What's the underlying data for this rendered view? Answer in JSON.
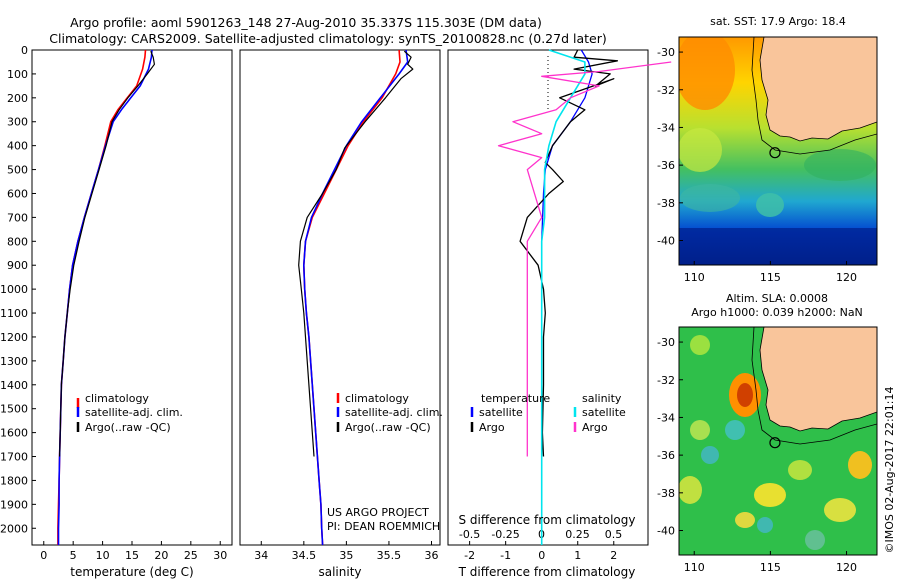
{
  "header": {
    "title_line1": "Argo profile: aoml 5901263_148 27-Aug-2010 35.337S 115.303E (DM data)",
    "title_line2": "Climatology: CARS2009. Satellite-adjusted climatology: synTS_20100828.nc (0.27d later)"
  },
  "colors": {
    "climatology": "#ff0000",
    "satellite": "#0000ff",
    "argo": "#000000",
    "sal_satellite": "#00e5ee",
    "sal_argo": "#ff33cc"
  },
  "chart_data": [
    {
      "type": "line",
      "id": "temperature",
      "xlabel": "temperature (deg C)",
      "xlim": [
        -2,
        32
      ],
      "xticks": [
        0,
        5,
        10,
        15,
        20,
        25,
        30
      ],
      "ylim": [
        2070,
        0
      ],
      "yticks": [
        0,
        100,
        200,
        300,
        400,
        500,
        600,
        700,
        800,
        900,
        1000,
        1100,
        1200,
        1300,
        1400,
        1500,
        1600,
        1700,
        1800,
        1900,
        2000
      ],
      "legend": [
        "climatology",
        "satellite-adj. clim.",
        "Argo(..raw -QC)"
      ],
      "series": [
        {
          "name": "climatology",
          "color_key": "climatology",
          "width": 1.6,
          "points": [
            [
              17.3,
              0
            ],
            [
              17.2,
              30
            ],
            [
              16.8,
              80
            ],
            [
              15.8,
              150
            ],
            [
              14.2,
              200
            ],
            [
              12.6,
              250
            ],
            [
              11.4,
              300
            ],
            [
              10.4,
              400
            ],
            [
              9.3,
              500
            ],
            [
              8.1,
              600
            ],
            [
              6.9,
              700
            ],
            [
              5.8,
              800
            ],
            [
              4.9,
              900
            ],
            [
              4.4,
              1000
            ],
            [
              4.0,
              1100
            ],
            [
              3.6,
              1200
            ],
            [
              3.3,
              1300
            ],
            [
              3.0,
              1400
            ],
            [
              2.9,
              1500
            ],
            [
              2.8,
              1600
            ],
            [
              2.7,
              1700
            ],
            [
              2.6,
              1800
            ],
            [
              2.5,
              1900
            ],
            [
              2.4,
              2000
            ],
            [
              2.4,
              2070
            ]
          ]
        },
        {
          "name": "satellite-adj. clim.",
          "color_key": "satellite",
          "width": 1.6,
          "points": [
            [
              18.4,
              0
            ],
            [
              18.3,
              30
            ],
            [
              17.8,
              80
            ],
            [
              16.4,
              150
            ],
            [
              14.8,
              200
            ],
            [
              13.2,
              250
            ],
            [
              11.8,
              300
            ],
            [
              10.5,
              400
            ],
            [
              9.3,
              500
            ],
            [
              8.1,
              600
            ],
            [
              6.9,
              700
            ],
            [
              5.8,
              800
            ],
            [
              4.9,
              900
            ],
            [
              4.4,
              1000
            ],
            [
              4.0,
              1100
            ],
            [
              3.6,
              1200
            ],
            [
              3.3,
              1300
            ],
            [
              3.0,
              1400
            ],
            [
              2.9,
              1500
            ],
            [
              2.8,
              1600
            ],
            [
              2.7,
              1700
            ],
            [
              2.6,
              1800
            ],
            [
              2.6,
              1900
            ],
            [
              2.5,
              2000
            ],
            [
              2.5,
              2070
            ]
          ]
        },
        {
          "name": "Argo(..raw -QC)",
          "color_key": "argo",
          "width": 1.2,
          "points": [
            [
              18.2,
              5
            ],
            [
              18.6,
              30
            ],
            [
              18.8,
              60
            ],
            [
              17.6,
              100
            ],
            [
              16.0,
              150
            ],
            [
              14.3,
              200
            ],
            [
              12.8,
              250
            ],
            [
              11.6,
              300
            ],
            [
              10.6,
              400
            ],
            [
              9.4,
              500
            ],
            [
              8.2,
              600
            ],
            [
              7.0,
              700
            ],
            [
              6.0,
              800
            ],
            [
              5.1,
              900
            ],
            [
              4.5,
              1000
            ],
            [
              4.0,
              1100
            ],
            [
              3.6,
              1200
            ],
            [
              3.3,
              1300
            ],
            [
              3.0,
              1400
            ],
            [
              2.9,
              1500
            ],
            [
              2.8,
              1600
            ],
            [
              2.7,
              1700
            ]
          ]
        }
      ]
    },
    {
      "type": "line",
      "id": "salinity",
      "xlabel": "salinity",
      "xlim": [
        33.75,
        36.1
      ],
      "xticks": [
        34,
        34.5,
        35,
        35.5,
        36
      ],
      "ylim": [
        2070,
        0
      ],
      "legend": [
        "climatology",
        "satellite-adj. clim.",
        "Argo(..raw -QC)"
      ],
      "annotations": [
        "US ARGO PROJECT",
        "PI: DEAN ROEMMICH"
      ],
      "series": [
        {
          "name": "climatology",
          "color_key": "climatology",
          "width": 1.6,
          "points": [
            [
              35.62,
              0
            ],
            [
              35.63,
              50
            ],
            [
              35.58,
              100
            ],
            [
              35.42,
              200
            ],
            [
              35.2,
              300
            ],
            [
              35.02,
              400
            ],
            [
              34.88,
              500
            ],
            [
              34.74,
              600
            ],
            [
              34.6,
              700
            ],
            [
              34.52,
              800
            ],
            [
              34.5,
              900
            ],
            [
              34.51,
              1000
            ],
            [
              34.53,
              1100
            ],
            [
              34.56,
              1200
            ],
            [
              34.58,
              1300
            ],
            [
              34.6,
              1400
            ],
            [
              34.62,
              1500
            ],
            [
              34.64,
              1600
            ],
            [
              34.66,
              1700
            ],
            [
              34.68,
              1800
            ],
            [
              34.7,
              1900
            ],
            [
              34.71,
              2000
            ],
            [
              34.72,
              2070
            ]
          ]
        },
        {
          "name": "satellite-adj. clim.",
          "color_key": "satellite",
          "width": 1.6,
          "points": [
            [
              35.7,
              0
            ],
            [
              35.72,
              50
            ],
            [
              35.62,
              100
            ],
            [
              35.4,
              200
            ],
            [
              35.18,
              300
            ],
            [
              35.0,
              400
            ],
            [
              34.86,
              500
            ],
            [
              34.72,
              600
            ],
            [
              34.59,
              700
            ],
            [
              34.52,
              800
            ],
            [
              34.5,
              900
            ],
            [
              34.51,
              1000
            ],
            [
              34.53,
              1100
            ],
            [
              34.56,
              1200
            ],
            [
              34.58,
              1300
            ],
            [
              34.6,
              1400
            ],
            [
              34.62,
              1500
            ],
            [
              34.64,
              1600
            ],
            [
              34.66,
              1700
            ],
            [
              34.68,
              1800
            ],
            [
              34.7,
              1900
            ],
            [
              34.71,
              2000
            ],
            [
              34.72,
              2070
            ]
          ]
        },
        {
          "name": "Argo(..raw -QC)",
          "color_key": "argo",
          "width": 1.2,
          "points": [
            [
              35.68,
              5
            ],
            [
              35.76,
              30
            ],
            [
              35.72,
              60
            ],
            [
              35.78,
              80
            ],
            [
              35.64,
              120
            ],
            [
              35.46,
              200
            ],
            [
              35.22,
              300
            ],
            [
              34.98,
              410
            ],
            [
              34.88,
              500
            ],
            [
              34.72,
              600
            ],
            [
              34.54,
              700
            ],
            [
              34.46,
              800
            ],
            [
              34.44,
              900
            ],
            [
              34.47,
              1000
            ],
            [
              34.5,
              1100
            ],
            [
              34.52,
              1200
            ],
            [
              34.54,
              1300
            ],
            [
              34.56,
              1400
            ],
            [
              34.58,
              1500
            ],
            [
              34.6,
              1600
            ],
            [
              34.62,
              1700
            ]
          ]
        }
      ]
    },
    {
      "type": "line",
      "id": "difference",
      "xlabel": "T difference from climatology",
      "xlabel2": "S difference from climatology",
      "xlim": [
        -2.6,
        2.95
      ],
      "xticks": [
        -2,
        -1,
        0,
        1,
        2
      ],
      "xticks2": [
        -0.5,
        -0.25,
        0,
        0.25,
        0.5
      ],
      "ylim": [
        2070,
        0
      ],
      "legend_headers": [
        "temperature",
        "salinity"
      ],
      "legend": [
        "satellite",
        "Argo",
        "satellite",
        "Argo"
      ],
      "series": [
        {
          "name": "satellite",
          "color_key": "satellite",
          "width": 1.3,
          "points": [
            [
              1.1,
              0
            ],
            [
              1.3,
              50
            ],
            [
              1.4,
              100
            ],
            [
              1.2,
              200
            ],
            [
              0.8,
              300
            ],
            [
              0.3,
              400
            ],
            [
              0.1,
              500
            ],
            [
              0.05,
              600
            ],
            [
              0,
              800
            ],
            [
              0,
              1000
            ],
            [
              0,
              1200
            ],
            [
              0,
              1400
            ],
            [
              0,
              1600
            ],
            [
              0,
              1800
            ],
            [
              0,
              2000
            ],
            [
              0,
              2070
            ]
          ]
        },
        {
          "name": "Argo",
          "color_key": "argo",
          "width": 1.3,
          "points": [
            [
              1.0,
              0
            ],
            [
              0.9,
              30
            ],
            [
              2.1,
              45
            ],
            [
              0.9,
              80
            ],
            [
              1.9,
              100
            ],
            [
              1.5,
              150
            ],
            [
              2.0,
              120
            ],
            [
              0.5,
              200
            ],
            [
              1.2,
              250
            ],
            [
              0.8,
              300
            ],
            [
              0.5,
              360
            ],
            [
              0.3,
              400
            ],
            [
              0.1,
              470
            ],
            [
              0.3,
              500
            ],
            [
              0.6,
              550
            ],
            [
              0.2,
              600
            ],
            [
              -0.1,
              650
            ],
            [
              -0.4,
              700
            ],
            [
              -0.6,
              800
            ],
            [
              -0.1,
              900
            ],
            [
              0.05,
              1000
            ],
            [
              0.1,
              1100
            ],
            [
              0.05,
              1200
            ],
            [
              0.05,
              1300
            ],
            [
              0.05,
              1400
            ],
            [
              0.02,
              1600
            ],
            [
              0.05,
              1700
            ]
          ]
        },
        {
          "name": "satellite",
          "color_key": "sal_satellite",
          "width": 1.6,
          "points": [
            [
              0.05,
              0
            ],
            [
              0.3,
              50
            ],
            [
              0.3,
              100
            ],
            [
              0.2,
              200
            ],
            [
              0.1,
              300
            ],
            [
              0.05,
              400
            ],
            [
              0.02,
              500
            ],
            [
              0.02,
              600
            ],
            [
              0.02,
              700
            ],
            [
              0,
              800
            ],
            [
              0,
              1000
            ],
            [
              0,
              1200
            ],
            [
              0,
              1400
            ],
            [
              0,
              1600
            ],
            [
              0,
              1800
            ],
            [
              0,
              2000
            ],
            [
              0,
              2070
            ]
          ]
        },
        {
          "name": "Argo",
          "color_key": "sal_argo",
          "width": 1.3,
          "points": [
            [
              0.9,
              50
            ],
            [
              0.4,
              90
            ],
            [
              0,
              110
            ],
            [
              0.4,
              150
            ],
            [
              0.2,
              200
            ],
            [
              0.1,
              250
            ],
            [
              -0.2,
              300
            ],
            [
              0,
              350
            ],
            [
              -0.3,
              400
            ],
            [
              0,
              450
            ],
            [
              -0.1,
              500
            ],
            [
              -0.05,
              600
            ],
            [
              0,
              700
            ],
            [
              -0.1,
              800
            ],
            [
              -0.1,
              900
            ],
            [
              -0.1,
              1000
            ],
            [
              -0.1,
              1100
            ],
            [
              -0.1,
              1200
            ],
            [
              -0.1,
              1300
            ],
            [
              -0.1,
              1400
            ],
            [
              -0.1,
              1500
            ],
            [
              -0.1,
              1600
            ],
            [
              -0.1,
              1700
            ]
          ]
        }
      ]
    },
    {
      "type": "heatmap",
      "id": "sst_map",
      "title": "sat. SST: 17.9 Argo: 18.4",
      "xlim": [
        109,
        122
      ],
      "ylim": [
        -41.3,
        -29.2
      ],
      "xticks": [
        110,
        115,
        120
      ],
      "yticks": [
        -30,
        -32,
        -34,
        -36,
        -38,
        -40
      ],
      "argo_position": [
        115.3,
        -35.34
      ],
      "land_color": "#f9c59b"
    },
    {
      "type": "heatmap",
      "id": "sla_map",
      "title_line1": "Altim. SLA: 0.0008",
      "title_line2": "Argo h1000: 0.039 h2000: NaN",
      "xlim": [
        109,
        122
      ],
      "ylim": [
        -41.3,
        -29.2
      ],
      "xticks": [
        110,
        115,
        120
      ],
      "yticks": [
        -30,
        -32,
        -34,
        -36,
        -38,
        -40
      ],
      "argo_position": [
        115.3,
        -35.34
      ],
      "land_color": "#f9c59b"
    }
  ],
  "footer": {
    "credit": "©IMOS 02-Aug-2017 22:01:14"
  }
}
